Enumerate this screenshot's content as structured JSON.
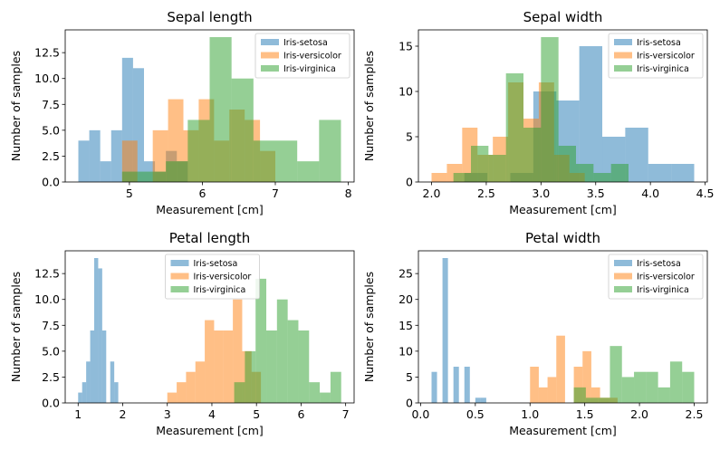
{
  "colors": {
    "Iris-setosa": "#1f77b4",
    "Iris-versicolor": "#ff7f0e",
    "Iris-virginica": "#2ca02c"
  },
  "chart_data": [
    {
      "type": "histogram",
      "title": "Sepal length",
      "xlabel": "Measurement [cm]",
      "ylabel": "Number of samples",
      "xlim": [
        4.12,
        8.08
      ],
      "ylim": [
        0,
        14.7
      ],
      "xticks": [
        5,
        6,
        7,
        8
      ],
      "xtick_labels": [
        "5",
        "6",
        "7",
        "8"
      ],
      "yticks": [
        0,
        2.5,
        5,
        7.5,
        10,
        12.5
      ],
      "ytick_labels": [
        "0.0",
        "2.5",
        "5.0",
        "7.5",
        "10.0",
        "12.5"
      ],
      "legend_position": "top-right",
      "series": [
        {
          "name": "Iris-setosa",
          "bins": [
            4.3,
            4.45,
            4.6,
            4.75,
            4.9,
            5.05,
            5.2,
            5.35,
            5.5,
            5.65,
            5.8
          ],
          "counts": [
            4,
            5,
            2,
            5,
            12,
            11,
            2,
            1,
            3,
            2
          ]
        },
        {
          "name": "Iris-versicolor",
          "bins": [
            4.9,
            5.11,
            5.32,
            5.53,
            5.74,
            5.95,
            6.16,
            6.37,
            6.58,
            6.79,
            7.0
          ],
          "counts": [
            4,
            0,
            5,
            8,
            5,
            8,
            4,
            7,
            6,
            3
          ]
        },
        {
          "name": "Iris-virginica",
          "bins": [
            4.9,
            5.2,
            5.5,
            5.8,
            6.1,
            6.4,
            6.7,
            7.0,
            7.3,
            7.6,
            7.9
          ],
          "counts": [
            1,
            1,
            2,
            6,
            14,
            10,
            4,
            4,
            2,
            6
          ]
        }
      ]
    },
    {
      "type": "histogram",
      "title": "Sepal width",
      "xlabel": "Measurement [cm]",
      "ylabel": "Number of samples",
      "xlim": [
        1.88,
        4.52
      ],
      "ylim": [
        0,
        16.8
      ],
      "xticks": [
        2.0,
        2.5,
        3.0,
        3.5,
        4.0,
        4.5
      ],
      "xtick_labels": [
        "2.0",
        "2.5",
        "3.0",
        "3.5",
        "4.0",
        "4.5"
      ],
      "yticks": [
        0,
        5,
        10,
        15
      ],
      "ytick_labels": [
        "0",
        "5",
        "10",
        "15"
      ],
      "legend_position": "top-right",
      "series": [
        {
          "name": "Iris-setosa",
          "bins": [
            2.3,
            2.51,
            2.72,
            2.93,
            3.14,
            3.35,
            3.56,
            3.77,
            3.98,
            4.19,
            4.4
          ],
          "counts": [
            1,
            0,
            1,
            10,
            9,
            15,
            5,
            6,
            2,
            2
          ]
        },
        {
          "name": "Iris-versicolor",
          "bins": [
            2.0,
            2.14,
            2.28,
            2.42,
            2.56,
            2.7,
            2.84,
            2.98,
            3.12,
            3.26,
            3.4
          ],
          "counts": [
            1,
            2,
            6,
            3,
            5,
            11,
            7,
            11,
            3,
            1
          ]
        },
        {
          "name": "Iris-virginica",
          "bins": [
            2.2,
            2.36,
            2.52,
            2.68,
            2.84,
            3.0,
            3.16,
            3.32,
            3.48,
            3.64,
            3.8
          ],
          "counts": [
            1,
            4,
            3,
            12,
            6,
            16,
            4,
            2,
            1,
            2
          ]
        }
      ]
    },
    {
      "type": "histogram",
      "title": "Petal length",
      "xlabel": "Measurement [cm]",
      "ylabel": "Number of samples",
      "xlim": [
        0.71,
        7.19
      ],
      "ylim": [
        0,
        14.7
      ],
      "xticks": [
        1,
        2,
        3,
        4,
        5,
        6,
        7
      ],
      "xtick_labels": [
        "1",
        "2",
        "3",
        "4",
        "5",
        "6",
        "7"
      ],
      "yticks": [
        0,
        2.5,
        5,
        7.5,
        10,
        12.5
      ],
      "ytick_labels": [
        "0.0",
        "2.5",
        "5.0",
        "7.5",
        "10.0",
        "12.5"
      ],
      "legend_position": "top-center",
      "series": [
        {
          "name": "Iris-setosa",
          "bins": [
            1.0,
            1.09,
            1.18,
            1.27,
            1.36,
            1.45,
            1.54,
            1.63,
            1.72,
            1.81,
            1.9
          ],
          "counts": [
            1,
            2,
            4,
            7,
            14,
            13,
            7,
            0,
            4,
            2
          ]
        },
        {
          "name": "Iris-versicolor",
          "bins": [
            3.0,
            3.21,
            3.42,
            3.63,
            3.84,
            4.05,
            4.26,
            4.47,
            4.68,
            4.89,
            5.1
          ],
          "counts": [
            1,
            2,
            3,
            4,
            8,
            7,
            7,
            10,
            5,
            3
          ]
        },
        {
          "name": "Iris-virginica",
          "bins": [
            4.5,
            4.74,
            4.98,
            5.22,
            5.46,
            5.7,
            5.94,
            6.18,
            6.42,
            6.66,
            6.9
          ],
          "counts": [
            2,
            5,
            12,
            7,
            10,
            8,
            7,
            2,
            1,
            3
          ]
        }
      ]
    },
    {
      "type": "histogram",
      "title": "Petal width",
      "xlabel": "Measurement [cm]",
      "ylabel": "Number of samples",
      "xlim": [
        -0.02,
        2.62
      ],
      "ylim": [
        0,
        29.4
      ],
      "xticks": [
        0.0,
        0.5,
        1.0,
        1.5,
        2.0,
        2.5
      ],
      "xtick_labels": [
        "0.0",
        "0.5",
        "1.0",
        "1.5",
        "2.0",
        "2.5"
      ],
      "yticks": [
        0,
        5,
        10,
        15,
        20,
        25
      ],
      "ytick_labels": [
        "0",
        "5",
        "10",
        "15",
        "20",
        "25"
      ],
      "legend_position": "top-right",
      "series": [
        {
          "name": "Iris-setosa",
          "bins": [
            0.1,
            0.15,
            0.2,
            0.25,
            0.3,
            0.35,
            0.4,
            0.45,
            0.5,
            0.55,
            0.6
          ],
          "counts": [
            6,
            0,
            28,
            0,
            7,
            0,
            7,
            0,
            1,
            1
          ]
        },
        {
          "name": "Iris-versicolor",
          "bins": [
            1.0,
            1.08,
            1.16,
            1.24,
            1.32,
            1.4,
            1.48,
            1.56,
            1.64,
            1.72,
            1.8
          ],
          "counts": [
            7,
            3,
            5,
            13,
            0,
            7,
            10,
            3,
            1,
            1
          ]
        },
        {
          "name": "Iris-virginica",
          "bins": [
            1.4,
            1.51,
            1.62,
            1.73,
            1.84,
            1.95,
            2.06,
            2.17,
            2.28,
            2.39,
            2.5
          ],
          "counts": [
            3,
            1,
            1,
            11,
            5,
            6,
            6,
            3,
            8,
            6
          ]
        }
      ]
    }
  ]
}
